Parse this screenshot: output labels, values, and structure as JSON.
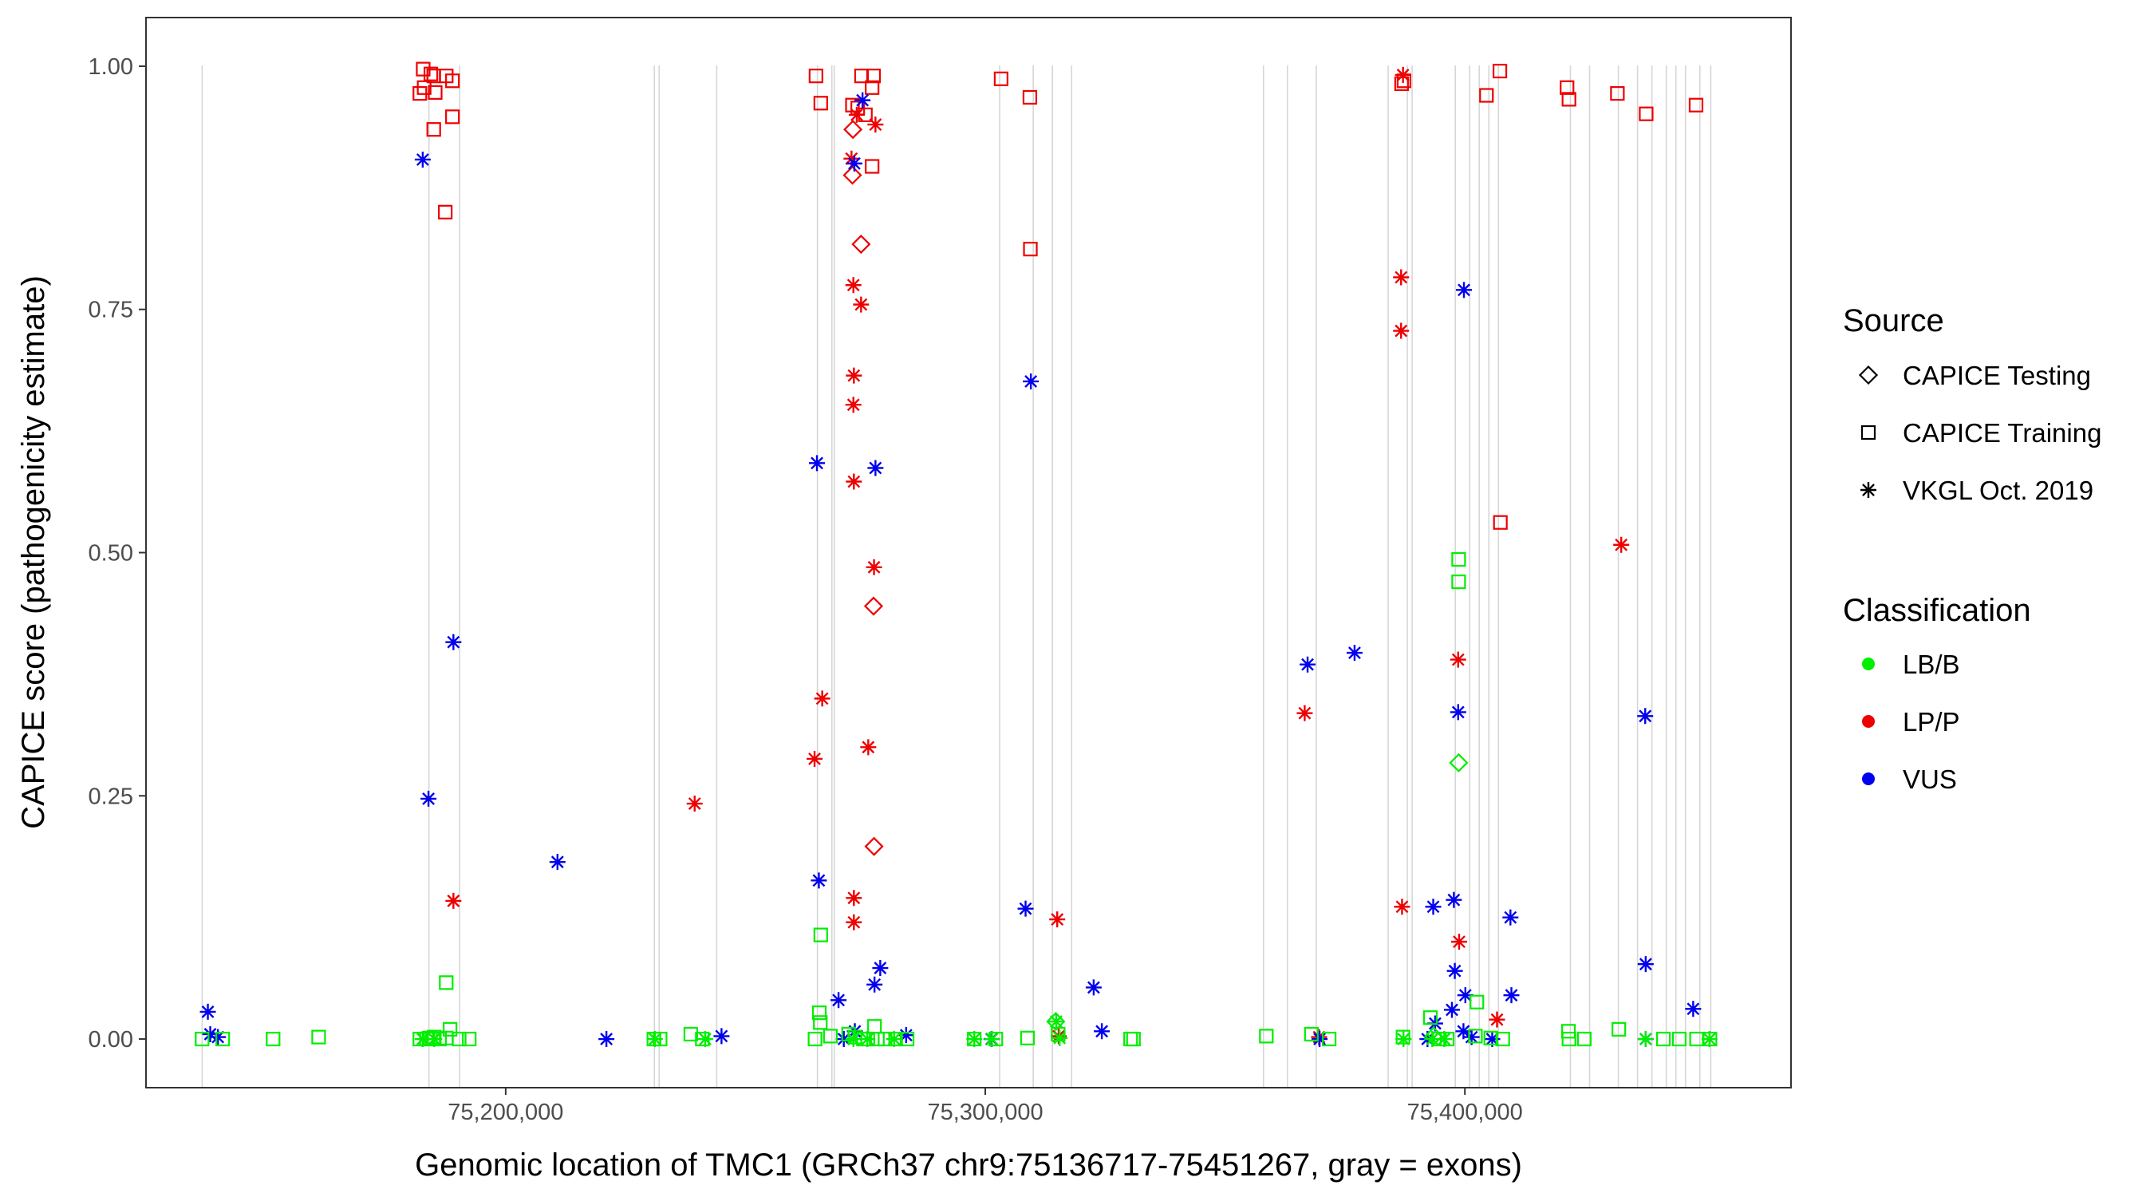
{
  "chart_data": {
    "type": "scatter",
    "title": "",
    "xlabel": "Genomic location of TMC1 (GRCh37 chr9:75136717-75451267, gray = exons)",
    "ylabel": "CAPICE score (pathogenicity estimate)",
    "xlim": [
      75125000,
      75468000
    ],
    "ylim": [
      -0.05,
      1.05
    ],
    "xticks": [
      75200000,
      75300000,
      75400000
    ],
    "xtick_labels": [
      "75,200,000",
      "75,300,000",
      "75,400,000"
    ],
    "yticks": [
      0.0,
      0.25,
      0.5,
      0.75,
      1.0
    ],
    "ytick_labels": [
      "0.00",
      "0.25",
      "0.50",
      "0.75",
      "1.00"
    ],
    "grid": false,
    "exons": [
      75136717,
      75184000,
      75190400,
      75231000,
      75232000,
      75244000,
      75265000,
      75268000,
      75268500,
      75303000,
      75310000,
      75314000,
      75318000,
      75358000,
      75363000,
      75369000,
      75384000,
      75388000,
      75389000,
      75398000,
      75401000,
      75403000,
      75405000,
      75407000,
      75422000,
      75426000,
      75432000,
      75436000,
      75439000,
      75442000,
      75444000,
      75446000,
      75449000,
      75451267
    ],
    "legend": {
      "position": "right",
      "source_title": "Source",
      "source_entries": [
        {
          "label": "CAPICE Testing",
          "shape": "diamond"
        },
        {
          "label": "CAPICE Training",
          "shape": "square"
        },
        {
          "label": "VKGL Oct. 2019",
          "shape": "asterisk"
        }
      ],
      "class_title": "Classification",
      "class_entries": [
        {
          "label": "LB/B",
          "color": "#00ee00"
        },
        {
          "label": "LP/P",
          "color": "#ee0000"
        },
        {
          "label": "VUS",
          "color": "#0000ee"
        }
      ]
    },
    "series": [
      {
        "name": "CAPICE Training LP/P",
        "shape": "square",
        "color": "#ee0000",
        "points": [
          [
            75182800,
            0.997
          ],
          [
            75184400,
            0.992
          ],
          [
            75185000,
            0.99
          ],
          [
            75187600,
            0.99
          ],
          [
            75182100,
            0.972
          ],
          [
            75183000,
            0.978
          ],
          [
            75185300,
            0.973
          ],
          [
            75188900,
            0.985
          ],
          [
            75185000,
            0.935
          ],
          [
            75188900,
            0.948
          ],
          [
            75187400,
            0.85
          ],
          [
            75264700,
            0.99
          ],
          [
            75265700,
            0.962
          ],
          [
            75273400,
            0.957
          ],
          [
            75274200,
            0.99
          ],
          [
            75276700,
            0.99
          ],
          [
            75276400,
            0.978
          ],
          [
            75272300,
            0.96
          ],
          [
            75275000,
            0.95
          ],
          [
            75276400,
            0.897
          ],
          [
            75303300,
            0.987
          ],
          [
            75309300,
            0.968
          ],
          [
            75309400,
            0.812
          ],
          [
            75386800,
            0.982
          ],
          [
            75387300,
            0.985
          ],
          [
            75407300,
            0.995
          ],
          [
            75404500,
            0.97
          ],
          [
            75421300,
            0.978
          ],
          [
            75421700,
            0.966
          ],
          [
            75431800,
            0.972
          ],
          [
            75437800,
            0.951
          ],
          [
            75448200,
            0.96
          ],
          [
            75407400,
            0.531
          ]
        ]
      },
      {
        "name": "CAPICE Testing LP/P",
        "shape": "diamond",
        "color": "#ee0000",
        "points": [
          [
            75272400,
            0.935
          ],
          [
            75272300,
            0.888
          ],
          [
            75274100,
            0.817
          ],
          [
            75276700,
            0.445
          ],
          [
            75276800,
            0.198
          ]
        ]
      },
      {
        "name": "VKGL LP/P",
        "shape": "asterisk",
        "color": "#ee0000",
        "points": [
          [
            75387100,
            0.991
          ],
          [
            75273200,
            0.95
          ],
          [
            75277100,
            0.94
          ],
          [
            75272100,
            0.905
          ],
          [
            75272500,
            0.775
          ],
          [
            75274100,
            0.755
          ],
          [
            75272600,
            0.682
          ],
          [
            75272500,
            0.652
          ],
          [
            75272600,
            0.573
          ],
          [
            75276800,
            0.485
          ],
          [
            75266000,
            0.35
          ],
          [
            75264400,
            0.288
          ],
          [
            75275600,
            0.3
          ],
          [
            75272600,
            0.145
          ],
          [
            75272600,
            0.12
          ],
          [
            75239400,
            0.242
          ],
          [
            75189100,
            0.142
          ],
          [
            75386700,
            0.783
          ],
          [
            75386700,
            0.728
          ],
          [
            75366600,
            0.335
          ],
          [
            75398600,
            0.39
          ],
          [
            75432600,
            0.508
          ],
          [
            75386900,
            0.136
          ],
          [
            75398800,
            0.1
          ],
          [
            75406700,
            0.02
          ],
          [
            75315000,
            0.123
          ],
          [
            75315300,
            0.003
          ],
          [
            75369600,
            0.002
          ]
        ]
      },
      {
        "name": "VKGL VUS",
        "shape": "asterisk",
        "color": "#0000ee",
        "points": [
          [
            75182700,
            0.904
          ],
          [
            75183900,
            0.247
          ],
          [
            75189100,
            0.408
          ],
          [
            75210800,
            0.182
          ],
          [
            75137900,
            0.028
          ],
          [
            75138400,
            0.005
          ],
          [
            75140000,
            0.002
          ],
          [
            75221000,
            0.0
          ],
          [
            75245000,
            0.003
          ],
          [
            75264900,
            0.592
          ],
          [
            75265300,
            0.163
          ],
          [
            75272700,
            0.9
          ],
          [
            75274400,
            0.965
          ],
          [
            75277100,
            0.587
          ],
          [
            75278100,
            0.073
          ],
          [
            75276900,
            0.056
          ],
          [
            75269400,
            0.04
          ],
          [
            75272800,
            0.008
          ],
          [
            75270500,
            0.0
          ],
          [
            75283500,
            0.004
          ],
          [
            75309500,
            0.676
          ],
          [
            75308400,
            0.134
          ],
          [
            75301300,
            0.0
          ],
          [
            75322600,
            0.053
          ],
          [
            75324300,
            0.008
          ],
          [
            75367200,
            0.385
          ],
          [
            75377000,
            0.397
          ],
          [
            75369700,
            0.0
          ],
          [
            75399800,
            0.77
          ],
          [
            75398600,
            0.336
          ],
          [
            75397700,
            0.143
          ],
          [
            75393400,
            0.136
          ],
          [
            75397900,
            0.07
          ],
          [
            75400100,
            0.045
          ],
          [
            75397300,
            0.03
          ],
          [
            75393800,
            0.016
          ],
          [
            75399700,
            0.008
          ],
          [
            75401400,
            0.002
          ],
          [
            75405700,
            0.0
          ],
          [
            75409500,
            0.125
          ],
          [
            75409700,
            0.045
          ],
          [
            75437600,
            0.332
          ],
          [
            75437700,
            0.077
          ],
          [
            75447600,
            0.031
          ],
          [
            75437700,
            0.0
          ],
          [
            75392200,
            0.0
          ]
        ]
      },
      {
        "name": "CAPICE Training LB/B",
        "shape": "square",
        "color": "#00ee00",
        "points": [
          [
            75136700,
            0.0
          ],
          [
            75141000,
            0.0
          ],
          [
            75151500,
            0.0
          ],
          [
            75161000,
            0.002
          ],
          [
            75182100,
            0.0
          ],
          [
            75183500,
            0.0
          ],
          [
            75184300,
            0.001
          ],
          [
            75185100,
            0.002
          ],
          [
            75186200,
            0.0
          ],
          [
            75187600,
            0.001
          ],
          [
            75188400,
            0.01
          ],
          [
            75190300,
            0.0
          ],
          [
            75192400,
            0.0
          ],
          [
            75187600,
            0.058
          ],
          [
            75230900,
            0.0
          ],
          [
            75232200,
            0.0
          ],
          [
            75238600,
            0.005
          ],
          [
            75241000,
            0.0
          ],
          [
            75264500,
            0.0
          ],
          [
            75265400,
            0.027
          ],
          [
            75265600,
            0.017
          ],
          [
            75265700,
            0.107
          ],
          [
            75267700,
            0.003
          ],
          [
            75271500,
            0.005
          ],
          [
            75272800,
            0.002
          ],
          [
            75274600,
            0.0
          ],
          [
            75275500,
            0.0
          ],
          [
            75276900,
            0.013
          ],
          [
            75277500,
            0.0
          ],
          [
            75279100,
            0.0
          ],
          [
            75281300,
            0.0
          ],
          [
            75283700,
            0.0
          ],
          [
            75297700,
            0.0
          ],
          [
            75302200,
            0.0
          ],
          [
            75308800,
            0.001
          ],
          [
            75315200,
            0.005
          ],
          [
            75330300,
            0.0
          ],
          [
            75330900,
            0.0
          ],
          [
            75358600,
            0.003
          ],
          [
            75368000,
            0.005
          ],
          [
            75371700,
            0.0
          ],
          [
            75387100,
            0.002
          ],
          [
            75392800,
            0.022
          ],
          [
            75394700,
            0.0
          ],
          [
            75396300,
            0.0
          ],
          [
            75398700,
            0.493
          ],
          [
            75398700,
            0.47
          ],
          [
            75402500,
            0.038
          ],
          [
            75402200,
            0.003
          ],
          [
            75405400,
            0.001
          ],
          [
            75407900,
            0.0
          ],
          [
            75421600,
            0.008
          ],
          [
            75421700,
            0.0
          ],
          [
            75424900,
            0.0
          ],
          [
            75432100,
            0.01
          ],
          [
            75441400,
            0.0
          ],
          [
            75444700,
            0.0
          ],
          [
            75448300,
            0.0
          ],
          [
            75451100,
            0.0
          ]
        ]
      },
      {
        "name": "CAPICE Testing LB/B",
        "shape": "diamond",
        "color": "#00ee00",
        "points": [
          [
            75398700,
            0.284
          ],
          [
            75314700,
            0.018
          ],
          [
            75393500,
            0.003
          ]
        ]
      },
      {
        "name": "VKGL LB/B",
        "shape": "asterisk",
        "color": "#00ee00",
        "points": [
          [
            75182700,
            0.0
          ],
          [
            75185100,
            0.0
          ],
          [
            75231100,
            0.0
          ],
          [
            75241600,
            0.0
          ],
          [
            75272500,
            0.0
          ],
          [
            75275400,
            0.0
          ],
          [
            75281000,
            0.0
          ],
          [
            75297700,
            0.0
          ],
          [
            75301400,
            0.0
          ],
          [
            75314800,
            0.018
          ],
          [
            75315500,
            0.001
          ],
          [
            75387200,
            0.0
          ],
          [
            75393200,
            0.0
          ],
          [
            75395700,
            0.0
          ],
          [
            75437700,
            0.0
          ],
          [
            75451000,
            0.0
          ]
        ]
      }
    ]
  }
}
